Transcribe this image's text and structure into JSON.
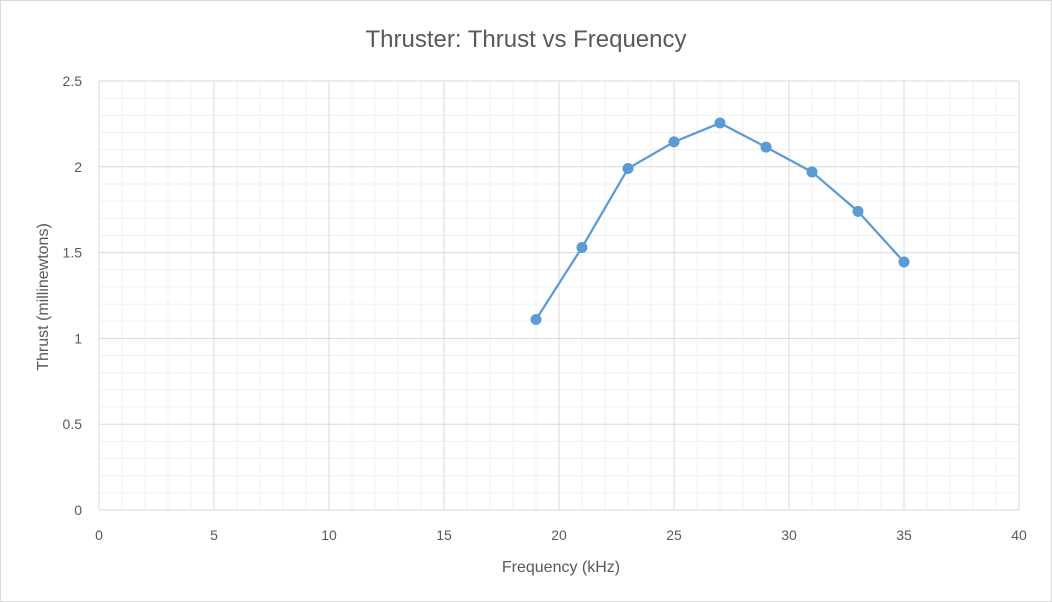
{
  "chart_data": {
    "type": "scatter",
    "title": "Thruster: Thrust vs Frequency",
    "xlabel": "Frequency (kHz)",
    "ylabel": "Thrust (millinewtons)",
    "xlim": [
      0,
      40
    ],
    "ylim": [
      0,
      2.5
    ],
    "xticks": [
      "0",
      "5",
      "10",
      "15",
      "20",
      "25",
      "30",
      "35",
      "40"
    ],
    "yticks": [
      "0",
      "0.5",
      "1",
      "1.5",
      "2",
      "2.5"
    ],
    "grid": true,
    "legend": "none",
    "series": [
      {
        "color": "#5b9bd5",
        "x": [
          19,
          21,
          23,
          25,
          27,
          29,
          31,
          33,
          35
        ],
        "y": [
          1.11,
          1.53,
          1.99,
          2.145,
          2.255,
          2.115,
          1.97,
          1.74,
          1.445
        ]
      }
    ]
  }
}
